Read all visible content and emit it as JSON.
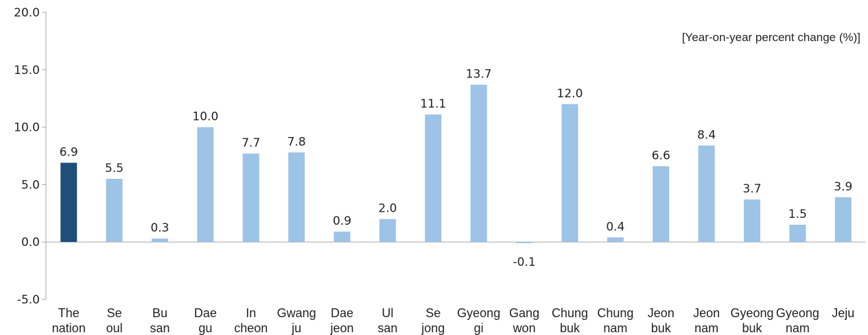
{
  "chart_data": {
    "type": "bar",
    "title": "",
    "unit_label": "[Year-on-year percent change (%)]",
    "xlabel": "",
    "ylabel": "",
    "ylim": [
      -5.0,
      20.0
    ],
    "yticks": [
      "20.0",
      "15.0",
      "10.0",
      "5.0",
      "0.0",
      "-5.0"
    ],
    "ytick_values": [
      20,
      15,
      10,
      5,
      0,
      -5
    ],
    "grid": false,
    "categories": [
      [
        "The",
        "nation"
      ],
      [
        "Se",
        "oul"
      ],
      [
        "Bu",
        "san"
      ],
      [
        "Dae",
        "gu"
      ],
      [
        "In",
        "cheon"
      ],
      [
        "Gwang",
        "ju"
      ],
      [
        "Dae",
        "jeon"
      ],
      [
        "Ul",
        "san"
      ],
      [
        "Se",
        "jong"
      ],
      [
        "Gyeong",
        "gi"
      ],
      [
        "Gang",
        "won"
      ],
      [
        "Chung",
        "buk"
      ],
      [
        "Chung",
        "nam"
      ],
      [
        "Jeon",
        "buk"
      ],
      [
        "Jeon",
        "nam"
      ],
      [
        "Gyeong",
        "buk"
      ],
      [
        "Gyeong",
        "nam"
      ],
      [
        "Jeju",
        ""
      ]
    ],
    "values": [
      6.9,
      5.5,
      0.3,
      10.0,
      7.7,
      7.8,
      0.9,
      2.0,
      11.1,
      13.7,
      -0.1,
      12.0,
      0.4,
      6.6,
      8.4,
      3.7,
      1.5,
      3.9
    ],
    "value_labels": [
      "6.9",
      "5.5",
      "0.3",
      "10.0",
      "7.7",
      "7.8",
      "0.9",
      "2.0",
      "11.1",
      "13.7",
      "-0.1",
      "12.0",
      "0.4",
      "6.6",
      "8.4",
      "3.7",
      "1.5",
      "3.9"
    ],
    "colors": {
      "highlight": "#1f4e79",
      "bar": "#9dc3e6",
      "axis": "#a6a6a6"
    }
  }
}
